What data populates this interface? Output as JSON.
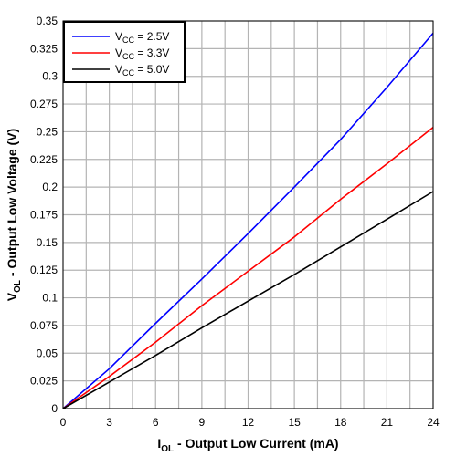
{
  "chart_data": {
    "type": "line",
    "title": "",
    "xlabel": {
      "main": "I",
      "sub": "OL",
      "rest": " - Output Low Current (mA)"
    },
    "ylabel": {
      "main": "V",
      "sub": "OL",
      "rest": " - Output Low Voltage (V)"
    },
    "xlim": [
      0,
      24
    ],
    "ylim": [
      0,
      0.35
    ],
    "xticks": [
      0,
      3,
      6,
      9,
      12,
      15,
      18,
      21,
      24
    ],
    "xtick_labels": [
      "0",
      "3",
      "6",
      "9",
      "12",
      "15",
      "18",
      "21",
      "24"
    ],
    "yticks": [
      0,
      0.025,
      0.05,
      0.075,
      0.1,
      0.125,
      0.15,
      0.175,
      0.2,
      0.225,
      0.25,
      0.275,
      0.3,
      0.325,
      0.35
    ],
    "ytick_labels": [
      "0",
      "0.025",
      "0.05",
      "0.075",
      "0.1",
      "0.125",
      "0.15",
      "0.175",
      "0.2",
      "0.225",
      "0.25",
      "0.275",
      "0.3",
      "0.325",
      "0.35"
    ],
    "grid": true,
    "legend_position": "top-left",
    "x": [
      0,
      3,
      6,
      9,
      12,
      15,
      18,
      21,
      24
    ],
    "series": [
      {
        "name": {
          "main": "V",
          "sub": "CC",
          "rest": " = 2.5V"
        },
        "color": "#0000ff",
        "values": [
          0,
          0.036,
          0.077,
          0.117,
          0.158,
          0.2,
          0.243,
          0.29,
          0.339
        ]
      },
      {
        "name": {
          "main": "V",
          "sub": "CC",
          "rest": " = 3.3V"
        },
        "color": "#ff0000",
        "values": [
          0,
          0.029,
          0.06,
          0.093,
          0.124,
          0.155,
          0.189,
          0.221,
          0.254
        ]
      },
      {
        "name": {
          "main": "V",
          "sub": "CC",
          "rest": " = 5.0V"
        },
        "color": "#000000",
        "values": [
          0,
          0.024,
          0.048,
          0.073,
          0.097,
          0.121,
          0.146,
          0.171,
          0.196
        ]
      }
    ]
  }
}
